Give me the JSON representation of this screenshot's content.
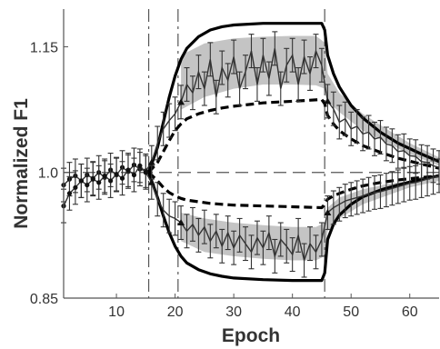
{
  "chart_data": {
    "type": "line",
    "title": "",
    "xlabel": "Epoch",
    "ylabel": "Normalized F1",
    "xlim": [
      1,
      65
    ],
    "ylim": [
      0.85,
      1.195
    ],
    "xticks": [
      10,
      20,
      30,
      40,
      50,
      60
    ],
    "yticks": [
      0.85,
      1.0,
      1.15
    ],
    "ytick_labels": [
      "0.85",
      "1.0",
      "1.15"
    ],
    "reference_line_y": 1.0,
    "vertical_markers": [
      15.5,
      20.5,
      45.5
    ],
    "grid": false,
    "legend": "none",
    "colors": {
      "data": "#333333",
      "envelope": "#000000",
      "band": "#c4c4c4",
      "reference": "#555555"
    },
    "series": [
      {
        "x": [
          1,
          2,
          3,
          4,
          5,
          6,
          7,
          8,
          9,
          10,
          11,
          12,
          13,
          14,
          15,
          16,
          17,
          18,
          19,
          20,
          21,
          22,
          23,
          24,
          25,
          26,
          27,
          28,
          29,
          30,
          31,
          32,
          33,
          34,
          35,
          36,
          37,
          38,
          39,
          40,
          41,
          42,
          43,
          44,
          45,
          46,
          47,
          48,
          49,
          50,
          51,
          52,
          53,
          54,
          55,
          56,
          57,
          58,
          59,
          60,
          61,
          62,
          63,
          64,
          65
        ],
        "values": [
          0.985,
          0.992,
          0.996,
          0.99,
          0.997,
          0.993,
          1.0,
          0.994,
          1.003,
          0.997,
          1.006,
          1.001,
          1.009,
          1.004,
          1.002,
          1.012,
          1.035,
          1.052,
          1.062,
          1.07,
          1.084,
          1.105,
          1.095,
          1.12,
          1.1,
          1.135,
          1.09,
          1.125,
          1.11,
          1.138,
          1.1,
          1.12,
          1.145,
          1.105,
          1.14,
          1.112,
          1.148,
          1.1,
          1.128,
          1.14,
          1.105,
          1.138,
          1.118,
          1.145,
          1.128,
          1.085,
          1.076,
          1.06,
          1.064,
          1.052,
          1.055,
          1.046,
          1.048,
          1.04,
          1.042,
          1.034,
          1.032,
          1.025,
          1.026,
          1.02,
          1.019,
          1.013,
          1.012,
          1.008,
          1.006
        ],
        "errors": 0.02
      },
      {
        "x": [
          1,
          2,
          3,
          4,
          5,
          6,
          7,
          8,
          9,
          10,
          11,
          12,
          13,
          14,
          15,
          16,
          17,
          18,
          19,
          20,
          21,
          22,
          23,
          24,
          25,
          26,
          27,
          28,
          29,
          30,
          31,
          32,
          33,
          34,
          35,
          36,
          37,
          38,
          39,
          40,
          41,
          42,
          43,
          44,
          45,
          46,
          47,
          48,
          49,
          50,
          51,
          52,
          53,
          54,
          55,
          56,
          57,
          58,
          59,
          60,
          61,
          62,
          63,
          64,
          65
        ],
        "values": [
          0.96,
          0.975,
          0.982,
          0.99,
          0.985,
          0.992,
          0.988,
          0.996,
          0.99,
          0.998,
          0.993,
          1.003,
          0.997,
          1.008,
          1.0,
          0.988,
          0.968,
          0.955,
          0.948,
          0.945,
          0.94,
          0.93,
          0.938,
          0.925,
          0.935,
          0.918,
          0.93,
          0.912,
          0.928,
          0.91,
          0.925,
          0.915,
          0.905,
          0.922,
          0.91,
          0.928,
          0.9,
          0.92,
          0.912,
          0.902,
          0.925,
          0.895,
          0.915,
          0.905,
          0.92,
          0.952,
          0.958,
          0.962,
          0.966,
          0.968,
          0.97,
          0.972,
          0.974,
          0.976,
          0.977,
          0.979,
          0.981,
          0.983,
          0.985,
          0.987,
          0.988,
          0.99,
          0.992,
          0.994,
          0.996
        ],
        "errors": 0.02
      }
    ],
    "envelopes": [
      {
        "style": "solid",
        "x": [
          15.5,
          17,
          18,
          19,
          20,
          21,
          22,
          24,
          26,
          28,
          30,
          35,
          40,
          45,
          45.5,
          46,
          47,
          48,
          50,
          52,
          55,
          58,
          62,
          65
        ],
        "values": [
          1.0,
          1.03,
          1.06,
          1.09,
          1.115,
          1.135,
          1.148,
          1.162,
          1.17,
          1.174,
          1.176,
          1.178,
          1.178,
          1.178,
          1.17,
          1.14,
          1.118,
          1.102,
          1.08,
          1.065,
          1.048,
          1.035,
          1.022,
          1.013
        ]
      },
      {
        "style": "dashed",
        "x": [
          15.5,
          17,
          18,
          19,
          20,
          21,
          22,
          24,
          26,
          28,
          30,
          35,
          40,
          45,
          45.5,
          46,
          47,
          48,
          50,
          52,
          55,
          58,
          62,
          65
        ],
        "values": [
          1.0,
          1.012,
          1.025,
          1.038,
          1.05,
          1.058,
          1.064,
          1.07,
          1.074,
          1.077,
          1.079,
          1.083,
          1.085,
          1.087,
          1.082,
          1.068,
          1.058,
          1.05,
          1.04,
          1.032,
          1.024,
          1.017,
          1.01,
          1.005
        ]
      },
      {
        "style": "dashed",
        "x": [
          15.5,
          17,
          18,
          19,
          20,
          21,
          22,
          24,
          26,
          28,
          30,
          35,
          40,
          45,
          45.5,
          46,
          47,
          48,
          50,
          52,
          55,
          58,
          62,
          65
        ],
        "values": [
          1.0,
          0.99,
          0.982,
          0.976,
          0.972,
          0.969,
          0.967,
          0.965,
          0.963,
          0.962,
          0.961,
          0.96,
          0.959,
          0.958,
          0.962,
          0.968,
          0.972,
          0.975,
          0.98,
          0.984,
          0.988,
          0.991,
          0.994,
          0.996
        ]
      },
      {
        "style": "solid",
        "x": [
          15.5,
          17,
          18,
          19,
          20,
          21,
          22,
          24,
          26,
          28,
          30,
          35,
          40,
          45,
          45.5,
          46,
          47,
          48,
          50,
          52,
          55,
          58,
          62,
          65
        ],
        "values": [
          1.0,
          0.97,
          0.948,
          0.928,
          0.912,
          0.9,
          0.892,
          0.884,
          0.879,
          0.876,
          0.874,
          0.872,
          0.871,
          0.871,
          0.88,
          0.92,
          0.938,
          0.949,
          0.962,
          0.971,
          0.979,
          0.985,
          0.992,
          0.996
        ]
      }
    ],
    "bands": [
      {
        "x": [
          21,
          25,
          30,
          35,
          40,
          44,
          45.5,
          46,
          48,
          52,
          56,
          60,
          65
        ],
        "upper": [
          1.14,
          1.154,
          1.16,
          1.162,
          1.163,
          1.163,
          1.155,
          1.118,
          1.095,
          1.07,
          1.052,
          1.035,
          1.018
        ],
        "lower": [
          1.075,
          1.09,
          1.1,
          1.105,
          1.105,
          1.104,
          1.1,
          1.085,
          1.072,
          1.05,
          1.036,
          1.022,
          1.008
        ]
      },
      {
        "x": [
          21,
          25,
          30,
          35,
          40,
          44,
          45.5,
          46,
          48,
          52,
          56,
          60,
          65
        ],
        "upper": [
          0.952,
          0.945,
          0.94,
          0.937,
          0.935,
          0.935,
          0.94,
          0.958,
          0.97,
          0.98,
          0.986,
          0.99,
          0.994
        ],
        "lower": [
          0.918,
          0.905,
          0.9,
          0.897,
          0.895,
          0.895,
          0.9,
          0.93,
          0.945,
          0.962,
          0.972,
          0.982,
          0.99
        ]
      }
    ]
  }
}
